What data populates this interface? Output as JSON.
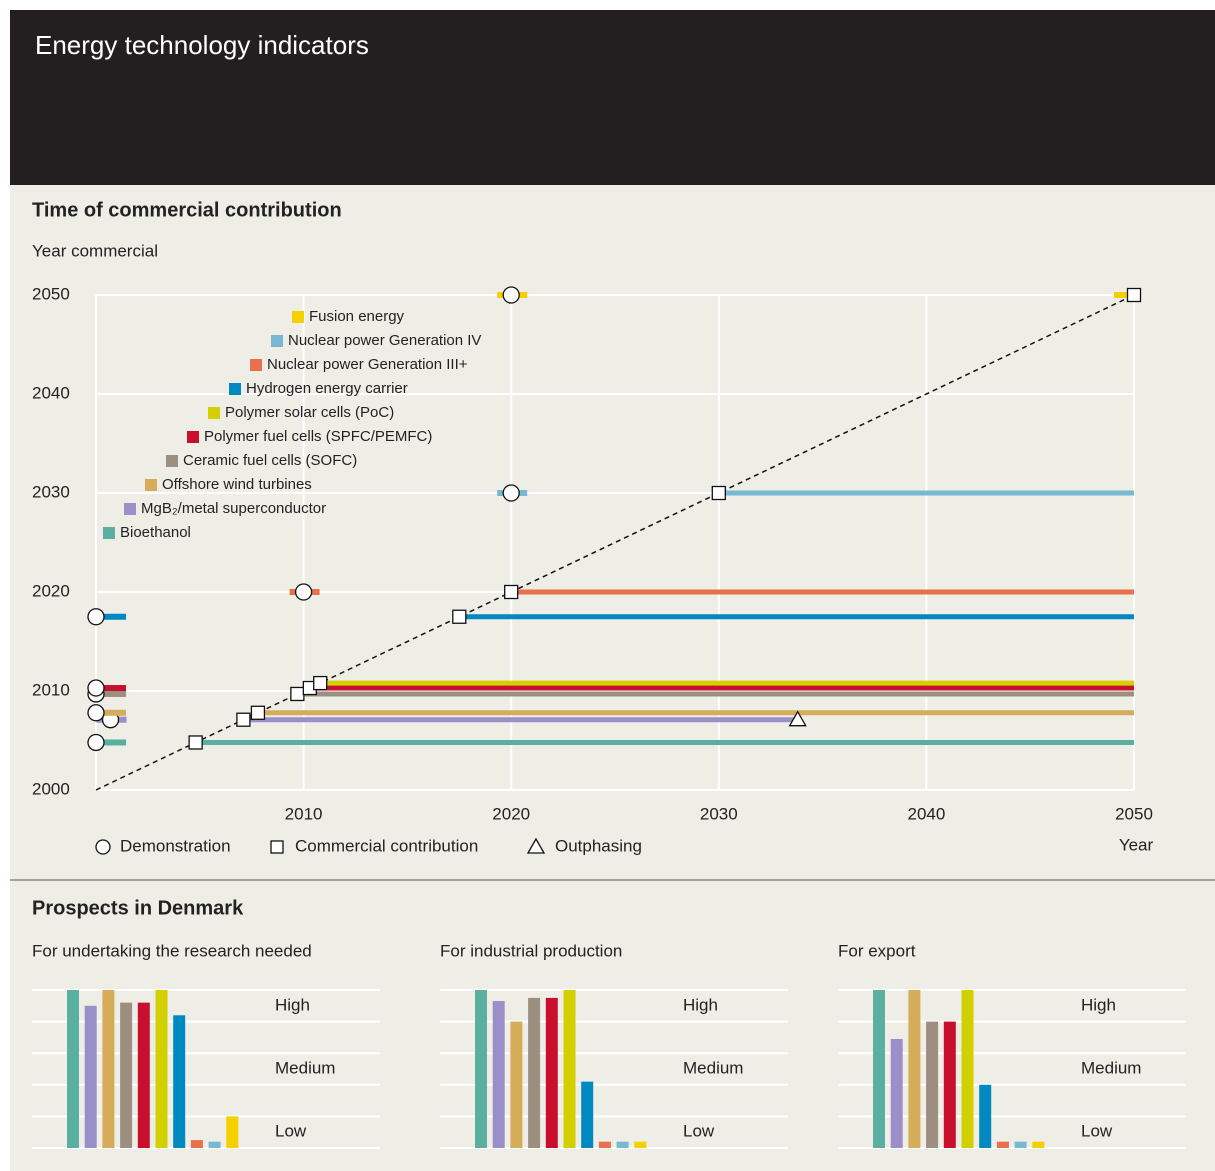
{
  "header": {
    "title": "Energy technology indicators"
  },
  "prospects": {
    "title": "Prospects in Denmark"
  },
  "chart_data": [
    {
      "type": "timeline",
      "title": "Time of commercial contribution",
      "ylabel": "Year commercial",
      "xlabel": "Year",
      "xlim": [
        2000,
        2050
      ],
      "ylim": [
        2000,
        2050
      ],
      "xticks": [
        2010,
        2020,
        2030,
        2040,
        2050
      ],
      "yticks": [
        2000,
        2010,
        2020,
        2030,
        2040,
        2050
      ],
      "grid": true,
      "marker_legend": [
        "Demonstration",
        "Commercial contribution",
        "Outphasing"
      ],
      "series": [
        {
          "name": "Bioethanol",
          "color": "#5aafa0",
          "demonstration": 2000,
          "commercial": 2004.8
        },
        {
          "name": "MgB₂/metal superconductor",
          "color": "#9a8fc8",
          "demonstration": 2000.7,
          "commercial": 2007.1,
          "outphasing": 2033.8
        },
        {
          "name": "Offshore wind turbines",
          "color": "#d4ac5a",
          "demonstration": 2000,
          "commercial": 2007.8
        },
        {
          "name": "Ceramic fuel cells (SOFC)",
          "color": "#9c8f80",
          "demonstration": 2000,
          "commercial": 2009.7
        },
        {
          "name": "Polymer fuel cells (SPFC/PEMFC)",
          "color": "#c8102e",
          "demonstration": 2000,
          "commercial": 2010.3
        },
        {
          "name": "Polymer solar cells (PoC)",
          "color": "#d4d000",
          "demonstration": null,
          "commercial": 2010.8
        },
        {
          "name": "Hydrogen energy carrier",
          "color": "#0088c0",
          "demonstration": 2000,
          "commercial": 2017.5
        },
        {
          "name": "Nuclear power Generation III+",
          "color": "#e8704a",
          "demonstration": 2010,
          "commercial": 2020
        },
        {
          "name": "Nuclear power Generation IV",
          "color": "#78b8d0",
          "demonstration": 2020,
          "commercial": 2030
        },
        {
          "name": "Fusion energy",
          "color": "#f5d000",
          "demonstration": 2020,
          "commercial": 2050
        }
      ]
    },
    {
      "type": "bar",
      "title": "For undertaking the research needed",
      "ylim": [
        0,
        5
      ],
      "grid_lines": [
        0,
        1,
        2,
        3,
        4,
        5
      ],
      "yticks": [
        {
          "value": 4.5,
          "label": "High"
        },
        {
          "value": 2.5,
          "label": "Medium"
        },
        {
          "value": 0.5,
          "label": "Low"
        }
      ],
      "values": [
        5,
        4.5,
        5,
        4.6,
        4.6,
        5,
        4.2,
        0.25,
        0.2,
        1
      ]
    },
    {
      "type": "bar",
      "title": "For industrial production",
      "ylim": [
        0,
        5
      ],
      "grid_lines": [
        0,
        1,
        2,
        3,
        4,
        5
      ],
      "yticks": [
        {
          "value": 4.5,
          "label": "High"
        },
        {
          "value": 2.5,
          "label": "Medium"
        },
        {
          "value": 0.5,
          "label": "Low"
        }
      ],
      "values": [
        5,
        4.65,
        4,
        4.75,
        4.75,
        5,
        2.1,
        0.2,
        0.2,
        0.2
      ]
    },
    {
      "type": "bar",
      "title": "For export",
      "ylim": [
        0,
        5
      ],
      "grid_lines": [
        0,
        1,
        2,
        3,
        4,
        5
      ],
      "yticks": [
        {
          "value": 4.5,
          "label": "High"
        },
        {
          "value": 2.5,
          "label": "Medium"
        },
        {
          "value": 0.5,
          "label": "Low"
        }
      ],
      "values": [
        5,
        3.45,
        5,
        4,
        4,
        5,
        2,
        0.2,
        0.2,
        0.2
      ]
    }
  ]
}
